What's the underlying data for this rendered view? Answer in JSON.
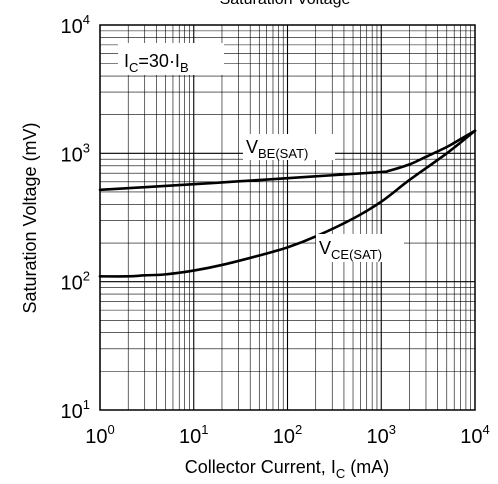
{
  "chart_data": {
    "type": "line",
    "title": "Saturation Voltage",
    "xlabel": "Collector Current, I",
    "xlabel_sub": "C",
    "xlabel_unit": " (mA)",
    "ylabel": "Saturation Voltage (mV)",
    "x_scale": "log",
    "y_scale": "log",
    "xlim": [
      1,
      10000
    ],
    "ylim": [
      10,
      10000
    ],
    "x_ticks": [
      {
        "base": "10",
        "exp": "0",
        "value": 1
      },
      {
        "base": "10",
        "exp": "1",
        "value": 10
      },
      {
        "base": "10",
        "exp": "2",
        "value": 100
      },
      {
        "base": "10",
        "exp": "3",
        "value": 1000
      },
      {
        "base": "10",
        "exp": "4",
        "value": 10000
      }
    ],
    "y_ticks": [
      {
        "base": "10",
        "exp": "1",
        "value": 10
      },
      {
        "base": "10",
        "exp": "2",
        "value": 100
      },
      {
        "base": "10",
        "exp": "3",
        "value": 1000
      },
      {
        "base": "10",
        "exp": "4",
        "value": 10000
      }
    ],
    "grid": true,
    "condition": {
      "a": "I",
      "a_sub": "C",
      "mid": "=30·I",
      "b_sub": "B"
    },
    "series": [
      {
        "label_main": "V",
        "label_sub": "BE(SAT)",
        "x": [
          1,
          3,
          10,
          30,
          100,
          300,
          1000,
          1200,
          2000,
          3000,
          5000,
          7000,
          10000
        ],
        "y": [
          520,
          545,
          575,
          605,
          640,
          675,
          715,
          730,
          820,
          940,
          1120,
          1290,
          1500
        ]
      },
      {
        "label_main": "V",
        "label_sub": "CE(SAT)",
        "x": [
          1,
          2,
          3,
          5,
          10,
          20,
          50,
          100,
          200,
          500,
          1000,
          2000,
          5000,
          10000
        ],
        "y": [
          110,
          110,
          112,
          114,
          122,
          135,
          160,
          185,
          225,
          310,
          420,
          620,
          1000,
          1500
        ]
      }
    ]
  }
}
